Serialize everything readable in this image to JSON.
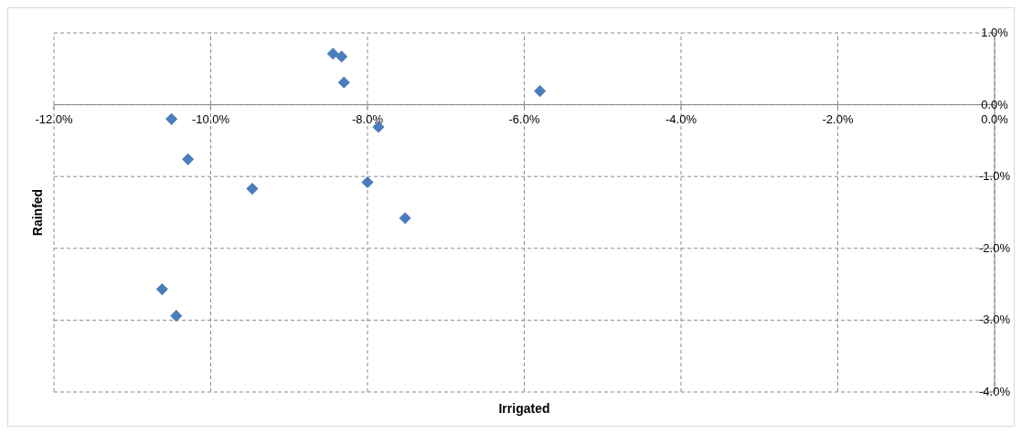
{
  "chart_data": {
    "type": "scatter",
    "xlabel": "Irrigated",
    "ylabel": "Rainfed",
    "series": [
      {
        "color": "#4a7ebb",
        "x": [
          -8.44,
          -8.33,
          -8.3,
          -5.8,
          -10.5,
          -7.86,
          -10.29,
          -9.47,
          -8.0,
          -7.52,
          -10.62,
          -10.44
        ],
        "values": [
          0.71,
          0.67,
          0.31,
          0.19,
          -0.2,
          -0.31,
          -0.76,
          -1.17,
          -1.08,
          -1.58,
          -2.57,
          -2.94
        ]
      }
    ],
    "xlim": [
      -12,
      0
    ],
    "ylim": [
      -4,
      1
    ],
    "xticks": [
      {
        "value": -12,
        "label": "-12.0%"
      },
      {
        "value": -10,
        "label": "-10.0%"
      },
      {
        "value": -8,
        "label": "-8.0%"
      },
      {
        "value": -6,
        "label": "-6.0%"
      },
      {
        "value": -4,
        "label": "-4.0%"
      },
      {
        "value": -2,
        "label": "-2.0%"
      },
      {
        "value": 0,
        "label": "0.0%"
      }
    ],
    "yticks": [
      {
        "value": 1,
        "label": "1.0%"
      },
      {
        "value": 0,
        "label": "0.0%"
      },
      {
        "value": -1,
        "label": "-1.0%"
      },
      {
        "value": -2,
        "label": "-2.0%"
      },
      {
        "value": -3,
        "label": "-3.0%"
      },
      {
        "value": -4,
        "label": "-4.0%"
      }
    ],
    "grid": true,
    "marker": "diamond"
  }
}
